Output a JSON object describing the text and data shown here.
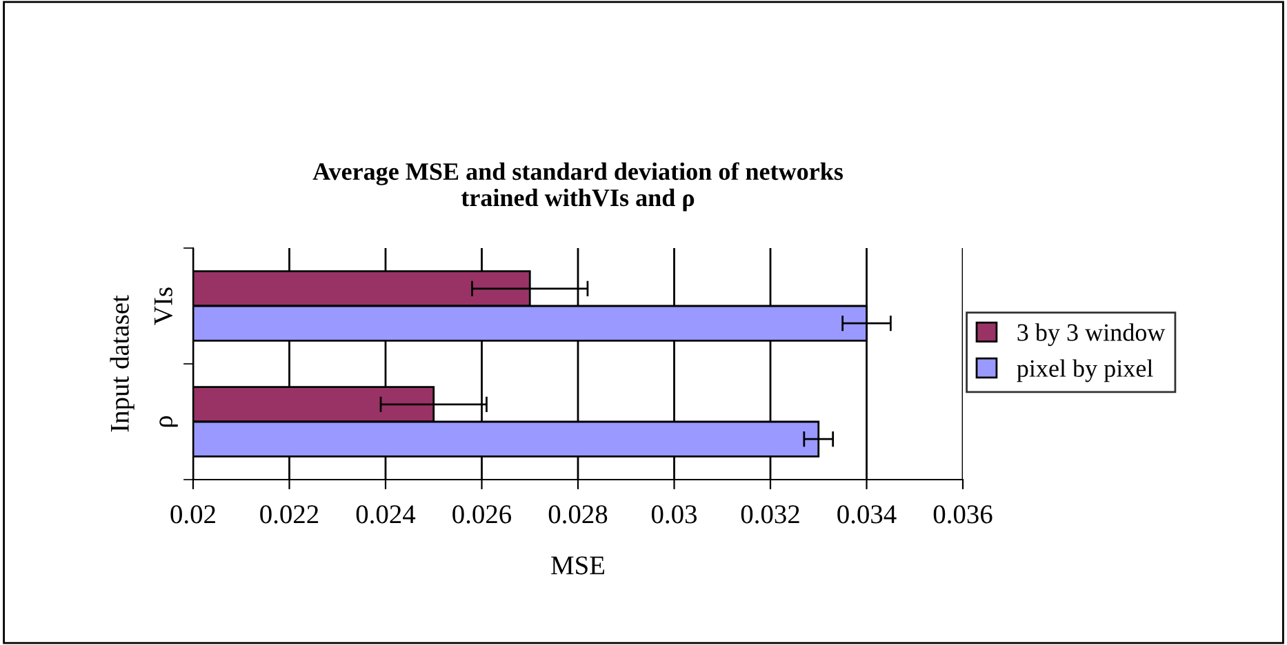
{
  "chart_data": {
    "type": "bar",
    "orientation": "horizontal",
    "title": "Average MSE and standard deviation of networks\ntrained withVIs and ρ",
    "xlabel": "MSE",
    "ylabel": "Input dataset",
    "categories": [
      "VIs",
      "ρ"
    ],
    "series": [
      {
        "name": "3 by 3 window",
        "color": "#993366",
        "values": [
          0.027,
          0.025
        ],
        "errors": [
          0.0012,
          0.0011
        ]
      },
      {
        "name": "pixel by pixel",
        "color": "#9999ff",
        "values": [
          0.034,
          0.033
        ],
        "errors": [
          0.0005,
          0.0003
        ]
      }
    ],
    "xlim": [
      0.02,
      0.036
    ],
    "xticks": [
      0.02,
      0.022,
      0.024,
      0.026,
      0.028,
      0.03,
      0.032,
      0.034,
      0.036
    ],
    "grid": "x",
    "legend": "right"
  }
}
